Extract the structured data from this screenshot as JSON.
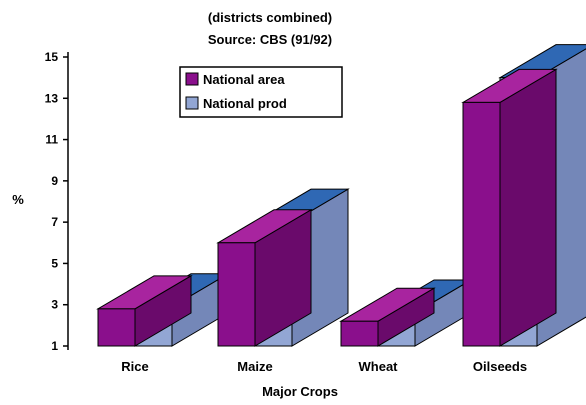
{
  "chart_data": {
    "type": "bar",
    "title_line1": "(districts combined)",
    "title_line2": "Source: CBS (91/92)",
    "xlabel": "Major Crops",
    "ylabel": "%",
    "ylim": [
      1,
      15
    ],
    "y_ticks": [
      "1",
      "3",
      "5",
      "7",
      "9",
      "11",
      "13",
      "15"
    ],
    "categories": [
      "Rice",
      "Maize",
      "Wheat",
      "Oilseeds"
    ],
    "series": [
      {
        "name": "National area",
        "values": [
          2.8,
          6,
          2.2,
          12.8
        ]
      },
      {
        "name": "National prod",
        "values": [
          2.9,
          7,
          2.6,
          14
        ]
      }
    ],
    "colors": {
      "area_front": "#8a0f8c",
      "area_side": "#6a0a6b",
      "area_top": "#a8249f",
      "prod_front": "#92a6d4",
      "prod_side": "#7487b8",
      "prod_top": "#2f68b4"
    },
    "legend_position": "top",
    "style": "3d"
  }
}
